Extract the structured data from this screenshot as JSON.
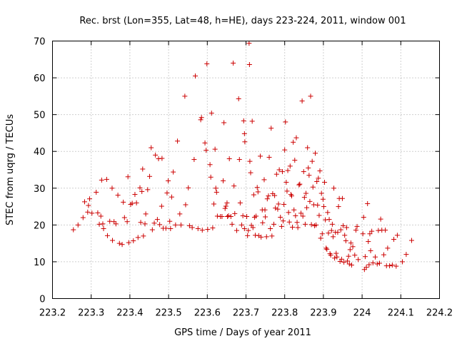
{
  "chart_data": {
    "type": "scatter",
    "title": "Rec. brst (Lon=355, Lat=48, h=HE), days 223-224, 2011, window 001",
    "xlabel": "GPS time / Days of year 2011",
    "ylabel": "STEC from uqrg / TECUs",
    "xlim": [
      223.2,
      224.2
    ],
    "ylim": [
      0,
      70
    ],
    "xticks": [
      "223.2",
      "223.3",
      "223.4",
      "223.5",
      "223.6",
      "223.7",
      "223.8",
      "223.9",
      "224",
      "224.1",
      "224.2"
    ],
    "yticks": [
      "0",
      "10",
      "20",
      "30",
      "40",
      "50",
      "60",
      "70"
    ],
    "grid": true,
    "marker": "plus",
    "color": "#cc0000",
    "series": [
      {
        "points": [
          [
            223.254,
            18.7
          ],
          [
            223.266,
            20.0
          ],
          [
            223.279,
            22.0
          ],
          [
            223.283,
            26.3
          ],
          [
            223.291,
            23.5
          ],
          [
            223.293,
            25.3
          ],
          [
            223.296,
            27.1
          ],
          [
            223.302,
            23.2
          ],
          [
            223.313,
            28.9
          ],
          [
            223.317,
            23.3
          ],
          [
            223.321,
            20.2
          ],
          [
            223.325,
            22.4
          ],
          [
            223.327,
            32.2
          ],
          [
            223.33,
            20.3
          ],
          [
            223.332,
            19.0
          ],
          [
            223.34,
            32.4
          ],
          [
            223.342,
            17.1
          ],
          [
            223.348,
            21.0
          ],
          [
            223.354,
            30.0
          ],
          [
            223.355,
            15.8
          ],
          [
            223.359,
            20.9
          ],
          [
            223.364,
            20.3
          ],
          [
            223.369,
            28.1
          ],
          [
            223.373,
            15.0
          ],
          [
            223.38,
            14.7
          ],
          [
            223.383,
            26.2
          ],
          [
            223.386,
            22.0
          ],
          [
            223.393,
            20.9
          ],
          [
            223.395,
            33.1
          ],
          [
            223.397,
            15.2
          ],
          [
            223.402,
            25.6
          ],
          [
            223.406,
            25.9
          ],
          [
            223.409,
            15.7
          ],
          [
            223.413,
            28.3
          ],
          [
            223.417,
            26.0
          ],
          [
            223.421,
            16.6
          ],
          [
            223.426,
            30.1
          ],
          [
            223.428,
            20.7
          ],
          [
            223.431,
            29.1
          ],
          [
            223.433,
            35.2
          ],
          [
            223.435,
            17.0
          ],
          [
            223.439,
            20.3
          ],
          [
            223.441,
            23.0
          ],
          [
            223.446,
            29.6
          ],
          [
            223.451,
            33.2
          ],
          [
            223.455,
            41.0
          ],
          [
            223.458,
            18.7
          ],
          [
            223.463,
            20.5
          ],
          [
            223.466,
            39.0
          ],
          [
            223.471,
            21.5
          ],
          [
            223.474,
            38.0
          ],
          [
            223.477,
            20.1
          ],
          [
            223.482,
            25.1
          ],
          [
            223.483,
            38.1
          ],
          [
            223.486,
            19.1
          ],
          [
            223.493,
            19.1
          ],
          [
            223.496,
            28.7
          ],
          [
            223.499,
            32.0
          ],
          [
            223.503,
            21.0
          ],
          [
            223.505,
            19.0
          ],
          [
            223.508,
            27.6
          ],
          [
            223.512,
            34.4
          ],
          [
            223.518,
            20.0
          ],
          [
            223.523,
            42.8
          ],
          [
            223.529,
            23.0
          ],
          [
            223.532,
            20.0
          ],
          [
            223.542,
            55.0
          ],
          [
            223.544,
            25.5
          ],
          [
            223.551,
            30.1
          ],
          [
            223.554,
            19.8
          ],
          [
            223.561,
            19.3
          ],
          [
            223.566,
            37.8
          ],
          [
            223.569,
            60.5
          ],
          [
            223.576,
            19.0
          ],
          [
            223.583,
            48.6
          ],
          [
            223.585,
            49.2
          ],
          [
            223.587,
            18.6
          ],
          [
            223.594,
            42.3
          ],
          [
            223.597,
            40.3
          ],
          [
            223.599,
            63.8
          ],
          [
            223.601,
            18.8
          ],
          [
            223.607,
            36.4
          ],
          [
            223.609,
            33.0
          ],
          [
            223.611,
            50.4
          ],
          [
            223.614,
            19.2
          ],
          [
            223.617,
            25.7
          ],
          [
            223.62,
            40.6
          ],
          [
            223.622,
            30.0
          ],
          [
            223.624,
            28.9
          ],
          [
            223.626,
            22.4
          ],
          [
            223.634,
            22.3
          ],
          [
            223.638,
            22.3
          ],
          [
            223.641,
            32.0
          ],
          [
            223.643,
            47.8
          ],
          [
            223.646,
            24.5
          ],
          [
            223.648,
            25.1
          ],
          [
            223.651,
            26.0
          ],
          [
            223.652,
            22.3
          ],
          [
            223.655,
            22.5
          ],
          [
            223.657,
            38.0
          ],
          [
            223.661,
            22.3
          ],
          [
            223.664,
            20.2
          ],
          [
            223.667,
            64.0
          ],
          [
            223.669,
            30.6
          ],
          [
            223.671,
            23.1
          ],
          [
            223.676,
            18.5
          ],
          [
            223.681,
            54.3
          ],
          [
            223.683,
            37.8
          ],
          [
            223.685,
            26.0
          ],
          [
            223.689,
            20.0
          ],
          [
            223.692,
            22.5
          ],
          [
            223.694,
            48.3
          ],
          [
            223.696,
            19.0
          ],
          [
            223.696,
            44.8
          ],
          [
            223.697,
            42.6
          ],
          [
            223.702,
            22.3
          ],
          [
            223.704,
            17.1
          ],
          [
            223.706,
            18.5
          ],
          [
            223.708,
            69.4
          ],
          [
            223.709,
            63.6
          ],
          [
            223.71,
            37.3
          ],
          [
            223.712,
            34.2
          ],
          [
            223.714,
            19.9
          ],
          [
            223.716,
            48.2
          ],
          [
            223.718,
            19.3
          ],
          [
            223.72,
            28.2
          ],
          [
            223.722,
            22.1
          ],
          [
            223.724,
            17.2
          ],
          [
            223.726,
            22.4
          ],
          [
            223.729,
            30.2
          ],
          [
            223.731,
            29.0
          ],
          [
            223.733,
            17.1
          ],
          [
            223.737,
            38.7
          ],
          [
            223.739,
            16.7
          ],
          [
            223.742,
            24.1
          ],
          [
            223.743,
            20.6
          ],
          [
            223.747,
            32.3
          ],
          [
            223.749,
            24.1
          ],
          [
            223.75,
            22.2
          ],
          [
            223.753,
            16.8
          ],
          [
            223.755,
            27.1
          ],
          [
            223.758,
            27.9
          ],
          [
            223.76,
            38.4
          ],
          [
            223.763,
            19.0
          ],
          [
            223.765,
            46.3
          ],
          [
            223.767,
            17.0
          ],
          [
            223.769,
            28.5
          ],
          [
            223.772,
            20.2
          ],
          [
            223.774,
            28.0
          ],
          [
            223.776,
            24.6
          ],
          [
            223.779,
            33.8
          ],
          [
            223.782,
            24.3
          ],
          [
            223.784,
            25.7
          ],
          [
            223.786,
            35.0
          ],
          [
            223.789,
            22.1
          ],
          [
            223.792,
            19.6
          ],
          [
            223.794,
            34.5
          ],
          [
            223.796,
            21.1
          ],
          [
            223.798,
            25.6
          ],
          [
            223.8,
            40.4
          ],
          [
            223.802,
            48.0
          ],
          [
            223.804,
            31.6
          ],
          [
            223.806,
            29.2
          ],
          [
            223.808,
            34.8
          ],
          [
            223.81,
            23.4
          ],
          [
            223.812,
            20.8
          ],
          [
            223.814,
            36.0
          ],
          [
            223.816,
            28.3
          ],
          [
            223.818,
            27.9
          ],
          [
            223.82,
            19.4
          ],
          [
            223.822,
            42.5
          ],
          [
            223.824,
            24.1
          ],
          [
            223.826,
            37.6
          ],
          [
            223.828,
            22.5
          ],
          [
            223.83,
            43.7
          ],
          [
            223.832,
            20.7
          ],
          [
            223.834,
            19.3
          ],
          [
            223.837,
            30.9
          ],
          [
            223.839,
            31.1
          ],
          [
            223.842,
            23.2
          ],
          [
            223.845,
            53.7
          ],
          [
            223.847,
            22.4
          ],
          [
            223.849,
            34.5
          ],
          [
            223.851,
            27.5
          ],
          [
            223.853,
            20.2
          ],
          [
            223.855,
            28.6
          ],
          [
            223.857,
            24.7
          ],
          [
            223.859,
            41.0
          ],
          [
            223.861,
            35.5
          ],
          [
            223.863,
            33.5
          ],
          [
            223.865,
            26.4
          ],
          [
            223.867,
            55.0
          ],
          [
            223.869,
            20.1
          ],
          [
            223.871,
            37.3
          ],
          [
            223.873,
            30.3
          ],
          [
            223.875,
            25.5
          ],
          [
            223.877,
            19.8
          ],
          [
            223.879,
            39.5
          ],
          [
            223.881,
            20.0
          ],
          [
            223.883,
            31.8
          ],
          [
            223.885,
            25.4
          ],
          [
            223.887,
            32.7
          ],
          [
            223.889,
            22.6
          ],
          [
            223.891,
            34.7
          ],
          [
            223.893,
            16.4
          ],
          [
            223.895,
            28.6
          ],
          [
            223.897,
            17.6
          ],
          [
            223.899,
            27.0
          ],
          [
            223.901,
            25.0
          ],
          [
            223.903,
            31.6
          ],
          [
            223.905,
            21.4
          ],
          [
            223.907,
            13.7
          ],
          [
            223.909,
            13.4
          ],
          [
            223.911,
            23.4
          ],
          [
            223.913,
            17.8
          ],
          [
            223.915,
            21.5
          ],
          [
            223.917,
            12.2
          ],
          [
            223.919,
            11.8
          ],
          [
            223.921,
            18.5
          ],
          [
            223.923,
            20.2
          ],
          [
            223.925,
            16.8
          ],
          [
            223.927,
            30.0
          ],
          [
            223.929,
            11.0
          ],
          [
            223.931,
            18.0
          ],
          [
            223.933,
            12.3
          ],
          [
            223.935,
            11.3
          ],
          [
            223.937,
            18.0
          ],
          [
            223.939,
            25.0
          ],
          [
            223.941,
            27.2
          ],
          [
            223.943,
            10.1
          ],
          [
            223.945,
            18.7
          ],
          [
            223.947,
            10.7
          ],
          [
            223.949,
            27.2
          ],
          [
            223.951,
            19.8
          ],
          [
            223.953,
            9.9
          ],
          [
            223.955,
            17.2
          ],
          [
            223.958,
            15.7
          ],
          [
            223.96,
            19.3
          ],
          [
            223.962,
            10.2
          ],
          [
            223.965,
            11.5
          ],
          [
            223.967,
            9.4
          ],
          [
            223.969,
            13.3
          ],
          [
            223.971,
            15.1
          ],
          [
            223.973,
            9.1
          ],
          [
            223.976,
            14.1
          ],
          [
            223.981,
            11.8
          ],
          [
            223.984,
            18.6
          ],
          [
            223.987,
            19.6
          ],
          [
            223.99,
            10.6
          ],
          [
            224.002,
            17.6
          ],
          [
            224.004,
            22.1
          ],
          [
            224.006,
            7.9
          ],
          [
            224.008,
            11.4
          ],
          [
            224.011,
            8.5
          ],
          [
            224.014,
            25.8
          ],
          [
            224.016,
            15.5
          ],
          [
            224.018,
            9.2
          ],
          [
            224.02,
            17.6
          ],
          [
            224.022,
            13.0
          ],
          [
            224.025,
            18.3
          ],
          [
            224.028,
            9.7
          ],
          [
            224.034,
            11.3
          ],
          [
            224.039,
            9.4
          ],
          [
            224.042,
            18.5
          ],
          [
            224.045,
            9.6
          ],
          [
            224.048,
            21.6
          ],
          [
            224.051,
            18.6
          ],
          [
            224.056,
            11.9
          ],
          [
            224.06,
            18.6
          ],
          [
            224.063,
            8.9
          ],
          [
            224.066,
            13.7
          ],
          [
            224.071,
            8.9
          ],
          [
            224.078,
            9.1
          ],
          [
            224.082,
            16.1
          ],
          [
            224.088,
            8.8
          ],
          [
            224.091,
            17.2
          ],
          [
            224.104,
            10.0
          ],
          [
            224.114,
            12.0
          ],
          [
            224.128,
            15.8
          ]
        ]
      }
    ]
  }
}
